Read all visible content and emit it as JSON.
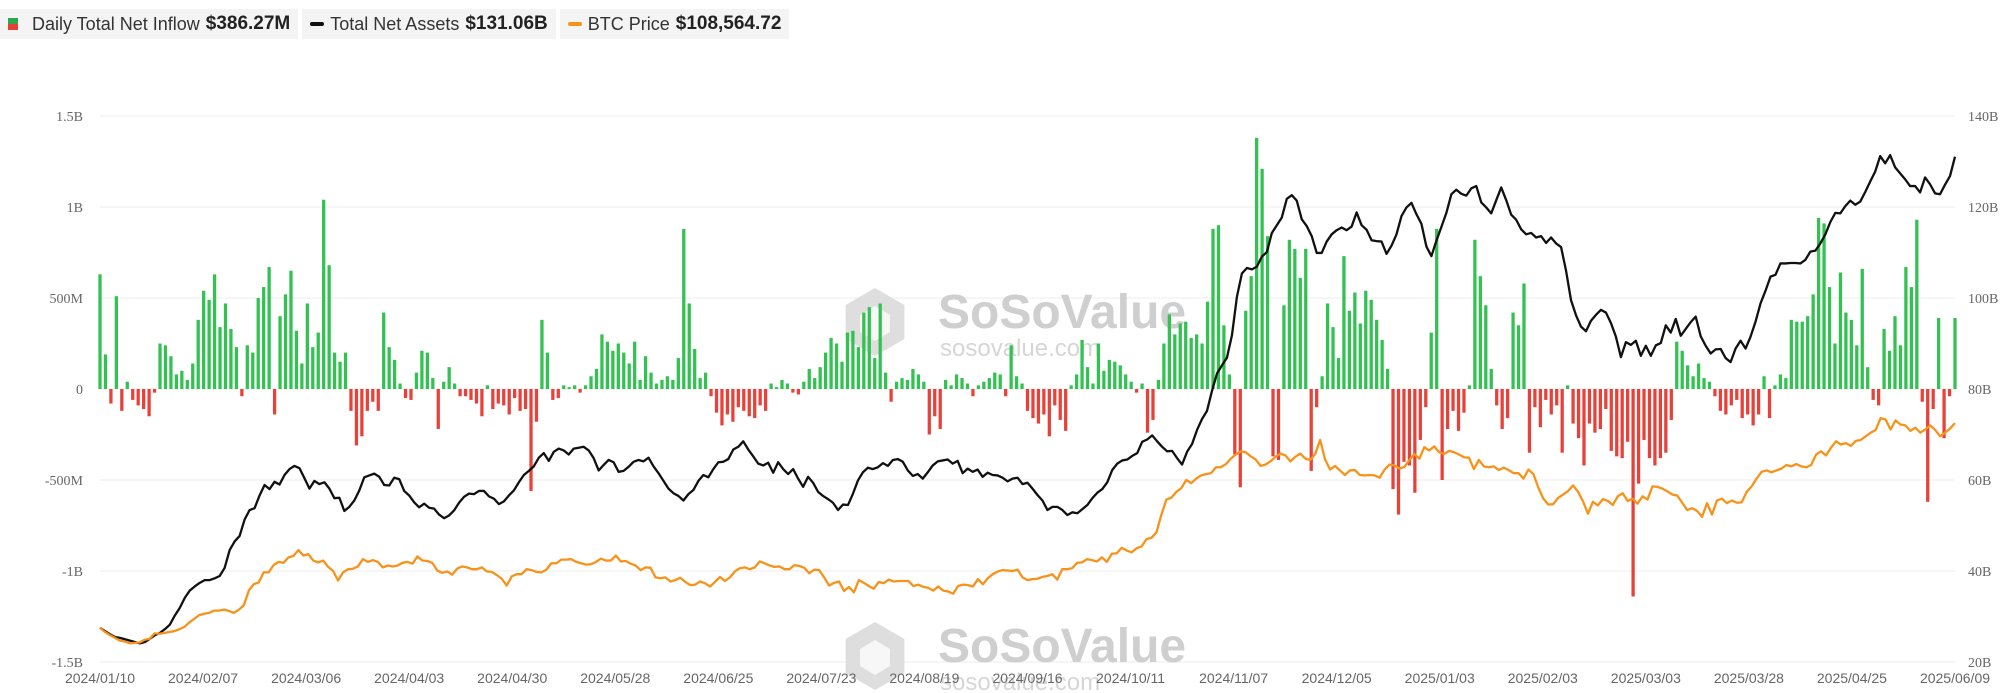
{
  "legend": [
    {
      "label": "Daily Total Net Inflow",
      "value": "$386.27M",
      "colors": [
        "#e5413a",
        "#2ea84f"
      ],
      "icon": "bar-swatch-icon"
    },
    {
      "label": "Total Net Assets",
      "value": "$131.06B",
      "color": "#111111",
      "icon": "line-swatch-icon"
    },
    {
      "label": "BTC Price",
      "value": "$108,564.72",
      "color": "#f7931a",
      "icon": "line-swatch-icon"
    }
  ],
  "watermark": {
    "brand": "SoSoValue",
    "url": "sosovalue.com"
  },
  "chart_data": {
    "type": "bar",
    "x_tick_labels": [
      "2024/01/10",
      "2024/02/07",
      "2024/03/06",
      "2024/04/03",
      "2024/04/30",
      "2024/05/28",
      "2024/06/25",
      "2024/07/23",
      "2024/08/19",
      "2024/09/16",
      "2024/10/11",
      "2024/11/07",
      "2024/12/05",
      "2025/01/03",
      "2025/02/03",
      "2025/03/03",
      "2025/03/28",
      "2025/04/25",
      "2025/06/09"
    ],
    "left_axis": {
      "ticks": [
        "1.5B",
        "1B",
        "500M",
        "0",
        "-500M",
        "-1B",
        "-1.5B"
      ],
      "values": [
        1.5,
        1.0,
        0.5,
        0,
        -0.5,
        -1.0,
        -1.5
      ],
      "unit": "USD billions",
      "ylim": [
        -1.5,
        1.5
      ]
    },
    "right_axis": {
      "ticks": [
        "140B",
        "120B",
        "100B",
        "80B",
        "60B",
        "40B",
        "20B"
      ],
      "values": [
        140,
        120,
        100,
        80,
        60,
        40,
        20
      ],
      "unit": "USD billions",
      "ylim": [
        20,
        140
      ]
    },
    "grid": true,
    "colors": {
      "inflow_positive": "#33c152",
      "inflow_negative": "#e8413a",
      "net_assets": "#111111",
      "btc_price": "#f7931a"
    },
    "bars": {
      "name": "Daily Total Net Inflow",
      "values": [
        0.63,
        0.19,
        -0.08,
        0.51,
        -0.12,
        0.04,
        -0.06,
        -0.09,
        -0.11,
        -0.15,
        -0.02,
        0.25,
        0.24,
        0.18,
        0.08,
        0.1,
        0.05,
        0.14,
        0.38,
        0.54,
        0.49,
        0.63,
        0.34,
        0.47,
        0.33,
        0.23,
        -0.04,
        0.24,
        0.2,
        0.5,
        0.56,
        0.67,
        -0.14,
        0.4,
        0.52,
        0.65,
        0.32,
        0.14,
        0.47,
        0.23,
        0.31,
        1.04,
        0.68,
        0.2,
        0.15,
        0.2,
        -0.12,
        -0.31,
        -0.26,
        -0.12,
        -0.07,
        -0.12,
        0.42,
        0.23,
        0.16,
        0.03,
        -0.05,
        -0.06,
        0.09,
        0.21,
        0.2,
        0.06,
        -0.22,
        0.04,
        0.12,
        0.03,
        -0.04,
        -0.04,
        -0.06,
        -0.08,
        -0.15,
        0.02,
        -0.11,
        -0.08,
        -0.09,
        -0.14,
        -0.05,
        -0.12,
        -0.11,
        -0.56,
        -0.18,
        0.38,
        0.2,
        -0.06,
        -0.05,
        0.02,
        0.01,
        0.02,
        -0.02,
        0.02,
        0.07,
        0.11,
        0.3,
        0.26,
        0.21,
        0.25,
        0.2,
        0.14,
        0.26,
        0.05,
        0.18,
        0.09,
        0.03,
        0.05,
        0.07,
        0.05,
        0.17,
        0.88,
        0.47,
        0.22,
        0.06,
        0.09,
        -0.04,
        -0.13,
        -0.2,
        -0.14,
        -0.18,
        -0.1,
        -0.12,
        -0.15,
        -0.16,
        -0.09,
        -0.12,
        0.03,
        0.01,
        0.05,
        0.03,
        -0.02,
        -0.03,
        0.04,
        0.11,
        0.06,
        0.12,
        0.2,
        0.28,
        0.25,
        0.15,
        0.31,
        0.32,
        0.23,
        0.42,
        0.45,
        0.17,
        0.47,
        0.09,
        -0.07,
        0.04,
        0.06,
        0.05,
        0.11,
        0.08,
        0.04,
        -0.25,
        -0.15,
        -0.22,
        0.05,
        0.02,
        0.08,
        0.06,
        0.03,
        -0.04,
        0.02,
        0.04,
        0.06,
        0.09,
        0.08,
        -0.04,
        0.24,
        0.07,
        0.03,
        -0.12,
        -0.16,
        -0.19,
        -0.14,
        -0.26,
        -0.09,
        -0.17,
        -0.23,
        0.02,
        0.08,
        0.27,
        0.12,
        0.03,
        0.25,
        0.1,
        0.16,
        0.15,
        0.13,
        0.08,
        0.04,
        -0.02,
        0.03,
        -0.24,
        -0.17,
        0.05,
        0.25,
        0.41,
        0.3,
        0.36,
        0.37,
        0.28,
        0.3,
        0.25,
        0.48,
        0.88,
        0.9,
        0.35,
        0.08,
        -0.36,
        -0.54,
        0.43,
        0.62,
        1.38,
        1.21,
        0.84,
        -0.37,
        -0.39,
        0.46,
        0.82,
        0.77,
        0.61,
        0.77,
        -0.45,
        -0.1,
        0.07,
        0.47,
        0.34,
        0.17,
        0.73,
        0.43,
        0.53,
        0.36,
        0.54,
        0.49,
        0.38,
        0.27,
        0.11,
        -0.55,
        -0.69,
        -0.4,
        -0.42,
        -0.57,
        -0.28,
        -0.1,
        0.31,
        0.88,
        -0.5,
        -0.22,
        -0.12,
        -0.23,
        -0.13,
        0.02,
        0.82,
        0.62,
        0.46,
        0.11,
        -0.09,
        -0.22,
        -0.16,
        0.42,
        0.35,
        0.58,
        -0.35,
        -0.1,
        -0.21,
        -0.06,
        -0.14,
        -0.09,
        -0.35,
        0.02,
        -0.19,
        -0.27,
        -0.42,
        -0.19,
        -0.24,
        -0.22,
        -0.11,
        -0.34,
        -0.37,
        -0.38,
        -0.29,
        -1.14,
        -0.52,
        -0.28,
        -0.38,
        -0.42,
        -0.38,
        -0.35,
        -0.17,
        0.26,
        0.21,
        0.13,
        0.07,
        0.14,
        0.06,
        0.04,
        -0.04,
        -0.12,
        -0.14,
        -0.09,
        -0.06,
        -0.16,
        -0.14,
        -0.2,
        -0.14,
        0.07,
        -0.16,
        0.02,
        0.08,
        0.06,
        0.38,
        0.37,
        0.37,
        0.4,
        0.52,
        0.94,
        0.91,
        0.56,
        0.25,
        0.64,
        0.42,
        0.38,
        0.24,
        0.66,
        0.12,
        -0.06,
        -0.09,
        0.33,
        0.21,
        0.4,
        0.24,
        0.67,
        0.56,
        0.93,
        -0.07,
        -0.62,
        -0.11,
        0.39,
        -0.27,
        -0.04,
        0.39
      ],
      "negative_markers_include_large": [
        -1.14,
        -0.69,
        -0.62,
        -0.56,
        -0.55,
        -0.54
      ]
    },
    "series": [
      {
        "name": "Total Net Assets",
        "axis": "right",
        "values": [
          27.5,
          26.8,
          26.1,
          25.5,
          25.3,
          25.0,
          24.7,
          24.4,
          24.1,
          24.4,
          25.1,
          25.9,
          26.4,
          27.2,
          28.2,
          30.2,
          31.9,
          34.1,
          35.7,
          36.6,
          37.4,
          38.0,
          38.0,
          38.4,
          38.9,
          40.7,
          44.6,
          46.5,
          47.7,
          51.3,
          53.4,
          53.8,
          56.6,
          58.9,
          58.0,
          59.6,
          59.0,
          61.1,
          62.4,
          63.1,
          62.6,
          60.4,
          58.1,
          59.8,
          59.1,
          59.5,
          58.1,
          56.0,
          56.1,
          53.2,
          54.1,
          55.5,
          57.7,
          60.6,
          61.0,
          61.4,
          60.7,
          58.9,
          58.8,
          60.5,
          60.2,
          57.6,
          56.6,
          55.1,
          54.0,
          54.8,
          53.9,
          53.7,
          52.4,
          51.6,
          52.2,
          53.3,
          55.0,
          56.3,
          57.0,
          56.9,
          57.6,
          57.6,
          56.4,
          55.9,
          54.7,
          55.3,
          56.6,
          57.7,
          59.5,
          61.1,
          62.0,
          63.0,
          64.9,
          65.9,
          64.2,
          66.2,
          66.9,
          66.5,
          65.6,
          66.9,
          67.1,
          67.3,
          66.5,
          64.8,
          62.1,
          63.3,
          64.4,
          63.9,
          61.8,
          62.0,
          62.9,
          64.0,
          64.4,
          64.1,
          64.9,
          63.0,
          61.5,
          59.8,
          58.1,
          57.1,
          56.5,
          55.5,
          56.9,
          57.8,
          59.8,
          61.1,
          60.6,
          62.4,
          63.9,
          64.0,
          64.6,
          66.7,
          67.3,
          68.5,
          66.7,
          65.2,
          63.6,
          63.2,
          63.8,
          61.6,
          63.9,
          62.4,
          61.3,
          62.4,
          60.3,
          58.5,
          60.7,
          59.4,
          57.4,
          56.5,
          55.8,
          55.0,
          53.4,
          54.6,
          54.5,
          57.0,
          59.9,
          61.7,
          62.7,
          62.4,
          62.8,
          63.7,
          63.1,
          64.4,
          64.6,
          64.0,
          62.1,
          60.9,
          61.3,
          60.3,
          61.7,
          63.2,
          64.1,
          64.3,
          64.5,
          63.6,
          64.2,
          61.5,
          62.5,
          61.8,
          62.3,
          60.7,
          61.6,
          61.1,
          61.0,
          60.5,
          59.7,
          60.3,
          60.5,
          59.1,
          59.4,
          58.1,
          56.7,
          55.5,
          53.4,
          54.1,
          54.1,
          53.4,
          52.3,
          52.9,
          52.7,
          53.6,
          54.5,
          56.0,
          57.2,
          58.0,
          59.5,
          62.2,
          63.6,
          64.3,
          64.5,
          65.3,
          65.9,
          68.4,
          68.9,
          69.8,
          68.5,
          67.3,
          66.3,
          66.4,
          64.8,
          63.4,
          66.2,
          67.9,
          71.0,
          73.4,
          75.2,
          79.6,
          83.4,
          85.2,
          86.9,
          91.8,
          100.3,
          105.4,
          106.6,
          106.3,
          106.9,
          109.1,
          110.1,
          114.3,
          116.0,
          117.7,
          121.8,
          122.6,
          121.4,
          117.3,
          115.8,
          113.6,
          109.9,
          109.9,
          112.4,
          114.0,
          114.9,
          115.5,
          114.9,
          115.7,
          118.8,
          116.0,
          115.0,
          112.7,
          112.5,
          112.4,
          109.7,
          111.5,
          114.0,
          118.0,
          119.9,
          120.9,
          118.4,
          116.3,
          111.3,
          109.2,
          112.6,
          115.6,
          118.7,
          122.8,
          123.8,
          122.9,
          122.5,
          124.1,
          124.6,
          121.0,
          119.9,
          118.6,
          121.5,
          124.3,
          121.5,
          118.3,
          117.2,
          115.1,
          114.0,
          114.3,
          113.3,
          113.6,
          112.1,
          113.3,
          112.0,
          111.2,
          106.0,
          99.5,
          96.2,
          93.7,
          92.7,
          95.0,
          96.3,
          97.4,
          96.8,
          94.5,
          91.5,
          87.0,
          90.3,
          89.7,
          90.6,
          87.3,
          89.5,
          87.3,
          89.6,
          90.1,
          94.0,
          92.4,
          95.4,
          91.7,
          93.2,
          94.7,
          95.9,
          91.6,
          89.5,
          87.8,
          88.7,
          88.8,
          86.8,
          85.9,
          88.9,
          90.6,
          88.9,
          91.5,
          94.8,
          98.8,
          101.6,
          104.7,
          105.1,
          107.6,
          107.6,
          107.7,
          107.7,
          107.6,
          108.4,
          110.2,
          110.4,
          112.0,
          114.0,
          116.7,
          118.7,
          118.6,
          120.2,
          121.4,
          120.5,
          121.2,
          123.3,
          125.6,
          127.8,
          131.2,
          129.6,
          131.4,
          128.7,
          127.4,
          126.1,
          124.6,
          124.6,
          123.2,
          126.5,
          125.0,
          123.0,
          122.8,
          124.9,
          126.8,
          131.06
        ]
      },
      {
        "name": "BTC Price",
        "axis": "right",
        "values": [
          27.5,
          26.6,
          25.9,
          25.3,
          24.7,
          24.5,
          24.1,
          24.2,
          24.3,
          24.9,
          25.1,
          26.3,
          26.2,
          26.4,
          26.6,
          26.8,
          27.2,
          27.7,
          28.7,
          29.5,
          30.3,
          30.6,
          30.8,
          31.3,
          31.3,
          31.5,
          31.2,
          30.8,
          31.5,
          32.5,
          35.7,
          37.1,
          37.5,
          39.7,
          39.7,
          41.3,
          42.0,
          41.8,
          43.0,
          43.3,
          44.6,
          43.4,
          43.7,
          42.3,
          41.9,
          42.3,
          40.9,
          40.0,
          37.9,
          39.7,
          40.4,
          40.5,
          41.0,
          42.6,
          42.0,
          42.4,
          42.0,
          40.8,
          41.2,
          41.0,
          41.2,
          41.8,
          42.0,
          41.6,
          43.2,
          42.3,
          42.2,
          41.8,
          40.1,
          39.6,
          39.9,
          39.2,
          40.5,
          41.0,
          40.8,
          40.4,
          40.4,
          40.8,
          39.9,
          39.8,
          39.1,
          38.3,
          36.8,
          38.8,
          39.3,
          39.3,
          40.4,
          40.2,
          39.8,
          39.7,
          40.3,
          41.7,
          41.7,
          42.5,
          42.5,
          42.6,
          42.0,
          41.7,
          41.4,
          41.5,
          42.0,
          42.7,
          42.3,
          42.3,
          43.4,
          42.1,
          42.2,
          41.6,
          41.2,
          40.2,
          40.8,
          40.7,
          38.6,
          38.4,
          38.6,
          37.7,
          38.0,
          38.5,
          37.6,
          36.9,
          37.0,
          37.7,
          37.3,
          36.6,
          37.6,
          38.7,
          37.8,
          38.6,
          39.9,
          40.6,
          40.8,
          40.4,
          40.8,
          42.1,
          41.7,
          41.2,
          40.9,
          41.0,
          40.4,
          40.4,
          41.3,
          41.1,
          40.7,
          39.5,
          40.3,
          40.2,
          38.6,
          36.8,
          37.4,
          37.7,
          35.6,
          36.5,
          35.3,
          38.0,
          37.4,
          36.7,
          36.1,
          37.6,
          37.3,
          38.1,
          37.7,
          37.8,
          37.8,
          37.8,
          36.7,
          37.0,
          36.5,
          36.3,
          35.7,
          36.6,
          35.7,
          35.5,
          35.0,
          36.7,
          37.0,
          36.9,
          36.6,
          38.2,
          37.1,
          38.4,
          39.3,
          39.9,
          40.2,
          40.1,
          40.0,
          40.3,
          38.6,
          38.0,
          38.2,
          38.3,
          38.7,
          38.9,
          39.3,
          38.1,
          40.4,
          40.4,
          40.6,
          41.8,
          41.9,
          42.6,
          42.4,
          42.1,
          43.0,
          42.0,
          43.8,
          43.9,
          45.1,
          44.5,
          44.1,
          45.0,
          45.4,
          47.0,
          47.3,
          48.5,
          52.4,
          55.7,
          56.1,
          57.4,
          58.2,
          60.0,
          59.3,
          60.3,
          61.0,
          61.3,
          61.5,
          62.8,
          62.8,
          63.5,
          64.7,
          65.6,
          66.3,
          66.1,
          65.2,
          64.5,
          63.1,
          63.4,
          64.1,
          65.1,
          65.8,
          65.4,
          64.1,
          65.1,
          65.8,
          64.7,
          64.4,
          65.7,
          68.8,
          64.5,
          62.3,
          63.1,
          62.1,
          61.1,
          62.1,
          62.2,
          61.1,
          61.0,
          61.1,
          61.0,
          60.5,
          62.3,
          63.4,
          63.2,
          62.5,
          62.9,
          64.4,
          65.7,
          64.7,
          67.2,
          66.5,
          67.4,
          66.1,
          65.7,
          66.4,
          66.1,
          65.6,
          65.0,
          64.9,
          62.4,
          64.4,
          63.0,
          62.8,
          63.0,
          62.2,
          62.7,
          62.2,
          61.5,
          61.5,
          60.3,
          62.3,
          61.3,
          58.3,
          55.9,
          54.6,
          54.7,
          56.1,
          56.8,
          57.6,
          58.8,
          57.4,
          55.3,
          52.6,
          55.2,
          54.4,
          55.8,
          55.4,
          54.5,
          56.4,
          57.1,
          55.4,
          55.9,
          54.8,
          56.4,
          55.7,
          58.6,
          58.5,
          58.1,
          57.5,
          56.8,
          56.6,
          55.0,
          53.4,
          53.8,
          53.2,
          51.9,
          54.9,
          52.4,
          55.5,
          55.9,
          54.9,
          55.5,
          55.0,
          55.1,
          57.4,
          58.6,
          60.3,
          61.8,
          62.1,
          61.7,
          62.1,
          62.5,
          63.3,
          63.0,
          63.5,
          63.0,
          62.8,
          63.3,
          65.6,
          66.3,
          65.4,
          67.1,
          68.5,
          67.8,
          68.1,
          67.5,
          68.6,
          68.8,
          69.6,
          70.4,
          71.0,
          73.6,
          73.3,
          71.1,
          73.1,
          72.2,
          72.0,
          70.8,
          71.5,
          70.4,
          71.1,
          72.0,
          71.0,
          69.6,
          70.4,
          71.3,
          72.5
        ]
      }
    ]
  }
}
